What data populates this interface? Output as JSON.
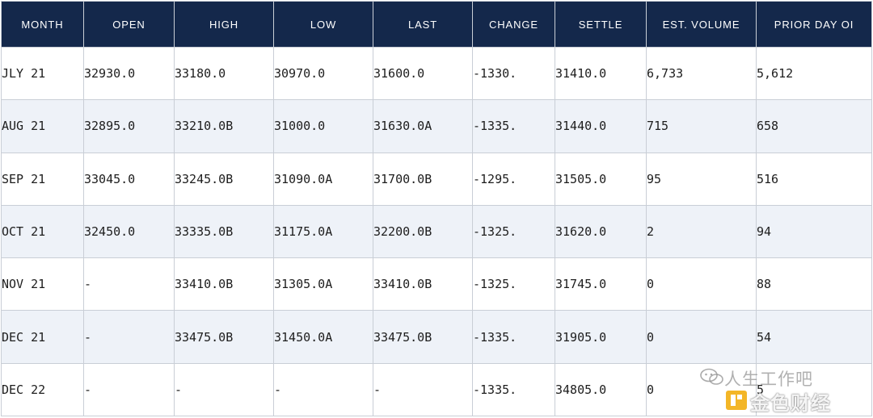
{
  "columns": [
    "MONTH",
    "OPEN",
    "HIGH",
    "LOW",
    "LAST",
    "CHANGE",
    "SETTLE",
    "EST. VOLUME",
    "PRIOR DAY OI"
  ],
  "rows": [
    [
      "JLY 21",
      "32930.0",
      "33180.0",
      "30970.0",
      "31600.0",
      "-1330.",
      "31410.0",
      "6,733",
      "5,612"
    ],
    [
      "AUG 21",
      "32895.0",
      "33210.0B",
      "31000.0",
      "31630.0A",
      "-1335.",
      "31440.0",
      "715",
      "658"
    ],
    [
      "SEP 21",
      "33045.0",
      "33245.0B",
      "31090.0A",
      "31700.0B",
      "-1295.",
      "31505.0",
      "95",
      "516"
    ],
    [
      "OCT 21",
      "32450.0",
      "33335.0B",
      "31175.0A",
      "32200.0B",
      "-1325.",
      "31620.0",
      "2",
      "94"
    ],
    [
      "NOV 21",
      "-",
      "33410.0B",
      "31305.0A",
      "33410.0B",
      "-1325.",
      "31745.0",
      "0",
      "88"
    ],
    [
      "DEC 21",
      "-",
      "33475.0B",
      "31450.0A",
      "33475.0B",
      "-1335.",
      "31905.0",
      "0",
      "54"
    ],
    [
      "DEC 22",
      "-",
      "-",
      "-",
      "-",
      "-1335.",
      "34805.0",
      "0",
      "5"
    ]
  ],
  "watermark": {
    "line1": "人生工作吧",
    "line2": "金色财经",
    "chat_icon": "wechat-bubble-icon",
    "logo_icon": "jinse-logo-icon"
  },
  "colors": {
    "header_bg": "#14284b",
    "header_text": "#ffffff",
    "stripe": "#eef2f8"
  }
}
